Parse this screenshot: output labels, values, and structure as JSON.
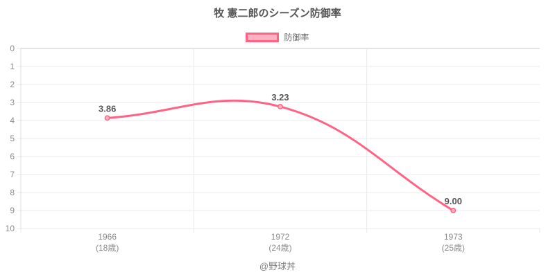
{
  "header": {
    "title": "牧 憲二郎のシーズン防御率"
  },
  "legend": {
    "items": [
      {
        "label": "防御率",
        "border_color": "#ff6384",
        "fill_color": "#ffb1c1"
      }
    ]
  },
  "chart_data": {
    "type": "line",
    "title": "牧 憲二郎のシーズン防御率",
    "series": [
      {
        "name": "防御率",
        "values": [
          3.86,
          3.23,
          9.0
        ],
        "point_labels": [
          "3.86",
          "3.23",
          "9.00"
        ],
        "line_color": "#ff6384",
        "point_fill_color": "#ffb1c1",
        "line_width": 3,
        "tension": 0.4
      }
    ],
    "categories": [
      {
        "line1": "1966",
        "line2": "(18歳)"
      },
      {
        "line1": "1972",
        "line2": "(24歳)"
      },
      {
        "line1": "1973",
        "line2": "(25歳)"
      }
    ],
    "y_axis": {
      "min": 0,
      "max": 10,
      "inverted": true,
      "ticks": [
        0,
        1,
        2,
        3,
        4,
        5,
        6,
        7,
        8,
        9,
        10
      ]
    },
    "grid": true,
    "legend_position": "top",
    "colors": {
      "grid_inner": "#e9e9e9",
      "grid_boundary": "#c9c9c9",
      "axis_line": "#dcdcdc",
      "tick_label": "#8a8a8a",
      "point_label": "#565656"
    }
  },
  "footer": {
    "credit": "@野球丼"
  }
}
